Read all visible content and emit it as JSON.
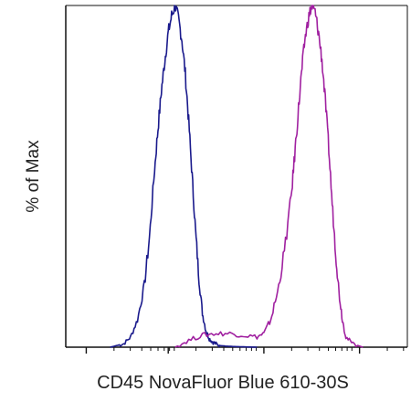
{
  "chart_data": {
    "type": "line",
    "title": "",
    "xlabel": "CD45 NovaFluor Blue 610-30S",
    "ylabel": "% of Max",
    "x_scale": "log",
    "xlim": [
      0,
      1
    ],
    "ylim": [
      0,
      100
    ],
    "grid": false,
    "legend": "none",
    "series": [
      {
        "color": "#1a1a8c",
        "x": [
          0.13,
          0.15,
          0.17,
          0.19,
          0.21,
          0.23,
          0.245,
          0.26,
          0.27,
          0.28,
          0.29,
          0.3,
          0.31,
          0.32,
          0.33,
          0.34,
          0.35,
          0.36,
          0.37,
          0.38,
          0.39,
          0.4,
          0.41,
          0.42,
          0.43,
          0.44,
          0.45,
          0.47,
          0.49,
          0.52,
          0.56
        ],
        "y": [
          0,
          0.5,
          1,
          3,
          8,
          18,
          32,
          52,
          64,
          75,
          84,
          92,
          97,
          100,
          96,
          90,
          80,
          66,
          50,
          34,
          20,
          10,
          5,
          2.5,
          1.5,
          1,
          0.5,
          0.3,
          0.2,
          0.1,
          0
        ]
      },
      {
        "color": "#a020a0",
        "x": [
          0.32,
          0.36,
          0.4,
          0.44,
          0.48,
          0.52,
          0.56,
          0.58,
          0.6,
          0.62,
          0.64,
          0.66,
          0.67,
          0.68,
          0.69,
          0.7,
          0.71,
          0.72,
          0.73,
          0.74,
          0.75,
          0.76,
          0.77,
          0.78,
          0.79,
          0.8,
          0.81,
          0.82,
          0.84,
          0.87
        ],
        "y": [
          0,
          2,
          3.5,
          4,
          4,
          3.5,
          3,
          4,
          8,
          16,
          28,
          44,
          56,
          68,
          80,
          90,
          96,
          100,
          98,
          92,
          84,
          72,
          58,
          42,
          28,
          16,
          8,
          3,
          1,
          0
        ]
      }
    ]
  }
}
